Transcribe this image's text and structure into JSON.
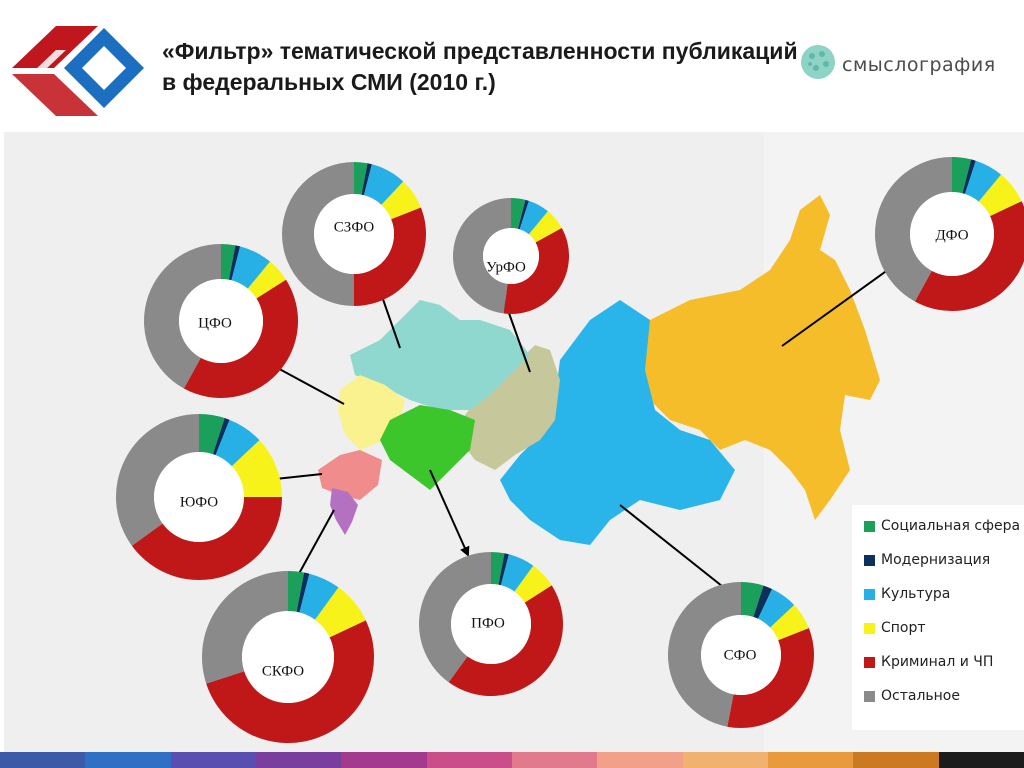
{
  "title": "«Фильтр» тематической  представленности публикаций в федеральных СМИ (2010 г.)",
  "brand": {
    "name": "смыслография"
  },
  "colors": {
    "social": "#1aa05a",
    "modern": "#0c2f5c",
    "culture": "#27b0e6",
    "sport": "#f7f21a",
    "crime": "#c01818",
    "other": "#8a8a8a"
  },
  "chart_data": {
    "type": "pie",
    "legend": {
      "placement": "bottom-right",
      "entries": [
        "Социальная сфера",
        "Модернизация",
        "Культура",
        "Спорт",
        "Криминал и ЧП",
        "Остальное"
      ]
    },
    "series_names": [
      "Социальная сфера",
      "Модернизация",
      "Культура",
      "Спорт",
      "Криминал и ЧП",
      "Остальное"
    ],
    "regions": [
      {
        "label": "СЗФО",
        "values": [
          3,
          1,
          8,
          7,
          31,
          50
        ]
      },
      {
        "label": "УрФО",
        "values": [
          4,
          1,
          6,
          6,
          35,
          48
        ]
      },
      {
        "label": "ДФО",
        "values": [
          4,
          1,
          6,
          7,
          40,
          42
        ]
      },
      {
        "label": "ЦФО",
        "values": [
          3,
          1,
          7,
          5,
          42,
          42
        ]
      },
      {
        "label": "ЮФО",
        "values": [
          5,
          1,
          7,
          12,
          40,
          35
        ]
      },
      {
        "label": "ПФО",
        "values": [
          3,
          1,
          6,
          6,
          44,
          40
        ]
      },
      {
        "label": "СФО",
        "values": [
          5,
          2,
          6,
          6,
          34,
          47
        ]
      },
      {
        "label": "СКФО",
        "values": [
          3,
          1,
          6,
          8,
          52,
          30
        ]
      }
    ]
  }
}
